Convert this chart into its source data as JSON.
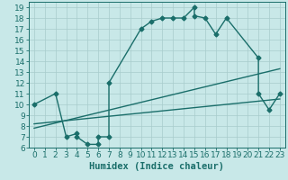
{
  "xlabel": "Humidex (Indice chaleur)",
  "bg_color": "#c8e8e8",
  "line_color": "#1a6e6a",
  "grid_color": "#a8cccc",
  "xlim": [
    -0.5,
    23.5
  ],
  "ylim": [
    6,
    19.5
  ],
  "xticks": [
    0,
    1,
    2,
    3,
    4,
    5,
    6,
    7,
    8,
    9,
    10,
    11,
    12,
    13,
    14,
    15,
    16,
    17,
    18,
    19,
    20,
    21,
    22,
    23
  ],
  "yticks": [
    6,
    7,
    8,
    9,
    10,
    11,
    12,
    13,
    14,
    15,
    16,
    17,
    18,
    19
  ],
  "line1_x": [
    0,
    2,
    3,
    4,
    4,
    5,
    6,
    6,
    7,
    7,
    10,
    11,
    12,
    13,
    14,
    15,
    15,
    16,
    17,
    18,
    21,
    21,
    22,
    23
  ],
  "line1_y": [
    10,
    11,
    7,
    7.3,
    7,
    6.3,
    6.3,
    7,
    7,
    12,
    17,
    17.7,
    18,
    18,
    18,
    19,
    18.2,
    18,
    16.5,
    18,
    14.3,
    11,
    9.5,
    11
  ],
  "line2_x": [
    0,
    23
  ],
  "line2_y": [
    7.8,
    13.3
  ],
  "line3_x": [
    0,
    23
  ],
  "line3_y": [
    8.2,
    10.5
  ],
  "marker": "D",
  "markersize": 2.5,
  "linewidth": 1.0,
  "tick_fontsize": 6.5,
  "xlabel_fontsize": 7.5
}
